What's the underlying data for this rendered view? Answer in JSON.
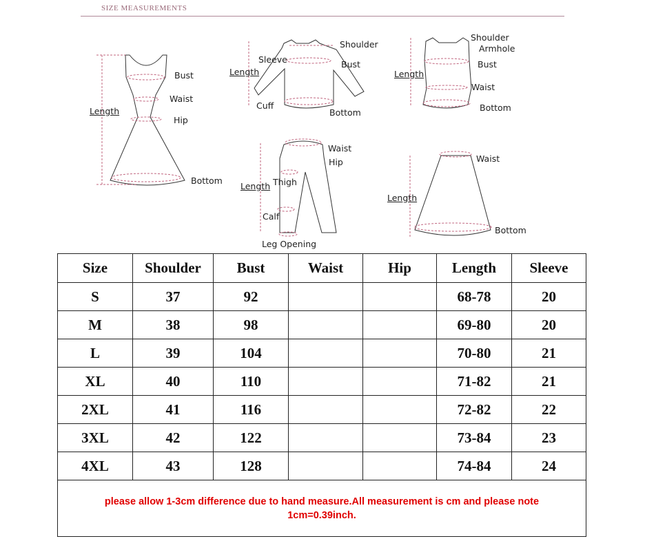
{
  "header": {
    "title": "SIZE MEASUREMENTS"
  },
  "diagrams": {
    "dress": {
      "length": "Length",
      "bust": "Bust",
      "waist": "Waist",
      "hip": "Hip",
      "bottom": "Bottom"
    },
    "top": {
      "shoulder": "Shoulder",
      "sleeve": "Sleeve",
      "length": "Length",
      "bust": "Bust",
      "cuff": "Cuff",
      "bottom": "Bottom"
    },
    "vest": {
      "shoulder": "Shoulder",
      "armhole": "Armhole",
      "length": "Length",
      "bust": "Bust",
      "waist": "Waist",
      "bottom": "Bottom"
    },
    "pants": {
      "waist": "Waist",
      "hip": "Hip",
      "length": "Length",
      "thigh": "Thigh",
      "calf": "Calf",
      "leg_opening": "Leg Opening"
    },
    "skirt": {
      "waist": "Waist",
      "length": "Length",
      "bottom": "Bottom"
    }
  },
  "table": {
    "headers": [
      "Size",
      "Shoulder",
      "Bust",
      "Waist",
      "Hip",
      "Length",
      "Sleeve"
    ],
    "rows": [
      [
        "S",
        "37",
        "92",
        "",
        "",
        "68-78",
        "20"
      ],
      [
        "M",
        "38",
        "98",
        "",
        "",
        "69-80",
        "20"
      ],
      [
        "L",
        "39",
        "104",
        "",
        "",
        "70-80",
        "21"
      ],
      [
        "XL",
        "40",
        "110",
        "",
        "",
        "71-82",
        "21"
      ],
      [
        "2XL",
        "41",
        "116",
        "",
        "",
        "72-82",
        "22"
      ],
      [
        "3XL",
        "42",
        "122",
        "",
        "",
        "73-84",
        "23"
      ],
      [
        "4XL",
        "43",
        "128",
        "",
        "",
        "74-84",
        "24"
      ]
    ],
    "note": "please allow 1-3cm difference due to hand measure.All measurement is cm and please note 1cm=0.39inch."
  },
  "colors": {
    "measure_line": "#c0647e",
    "note_text": "#e00000"
  }
}
